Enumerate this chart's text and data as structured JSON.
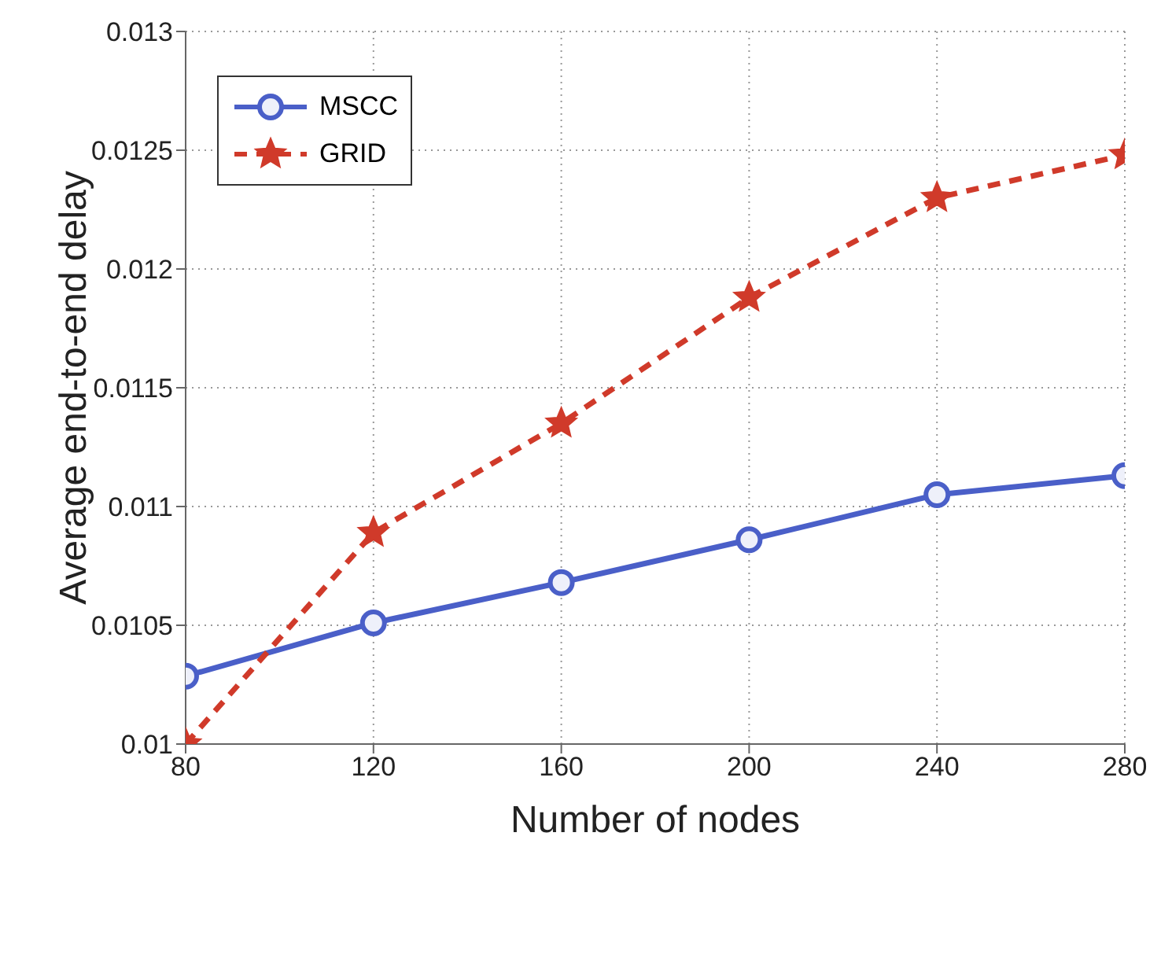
{
  "chart_data": {
    "type": "line",
    "xlabel": "Number of nodes",
    "ylabel": "Average end-to-end delay",
    "x": [
      80,
      120,
      160,
      200,
      240,
      280
    ],
    "series": [
      {
        "name": "MSCC",
        "color": "#4a5fc8",
        "values": [
          0.010286,
          0.01051,
          0.01068,
          0.01086,
          0.01105,
          0.01113
        ],
        "marker": "circle",
        "line_style": "solid"
      },
      {
        "name": "GRID",
        "color": "#d03a2a",
        "values": [
          0.01,
          0.01089,
          0.01135,
          0.01188,
          0.0123,
          0.01248
        ],
        "marker": "star",
        "line_style": "dashed"
      }
    ],
    "xlim": [
      80,
      280
    ],
    "xticks": [
      80,
      120,
      160,
      200,
      240,
      280
    ],
    "ylim": [
      0.01,
      0.013
    ],
    "yticks": [
      0.01,
      0.0105,
      0.011,
      0.0115,
      0.012,
      0.0125,
      0.013
    ],
    "grid": true,
    "legend": "top left"
  }
}
